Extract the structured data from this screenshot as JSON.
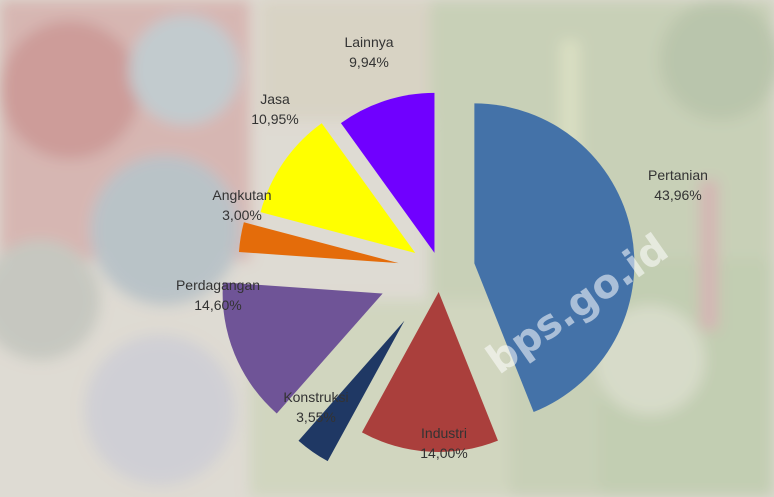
{
  "chart_data": {
    "type": "pie",
    "exploded": true,
    "slices": [
      {
        "label": "Pertanian",
        "value_text": "43,96%",
        "value": 43.96,
        "color": "#4472a8"
      },
      {
        "label": "Industri",
        "value_text": "14,00%",
        "value": 14.0,
        "color": "#aa3f3c"
      },
      {
        "label": "Konstruksi",
        "value_text": "3,55%",
        "value": 3.55,
        "color": "#1f3864"
      },
      {
        "label": "Perdagangan",
        "value_text": "14,60%",
        "value": 14.6,
        "color": "#6f5497"
      },
      {
        "label": "Angkutan",
        "value_text": "3,00%",
        "value": 3.0,
        "color": "#e46c0a"
      },
      {
        "label": "Jasa",
        "value_text": "10,95%",
        "value": 10.95,
        "color": "#ffff00"
      },
      {
        "label": "Lainnya",
        "value_text": "9,94%",
        "value": 9.94,
        "color": "#7000ff"
      }
    ]
  },
  "watermark": "bps.go.id",
  "background": {
    "description_icon": "vegetable-market-photo",
    "colors": [
      "#c9c3b4",
      "#a8b892",
      "#b88a86",
      "#9aaab5"
    ]
  }
}
